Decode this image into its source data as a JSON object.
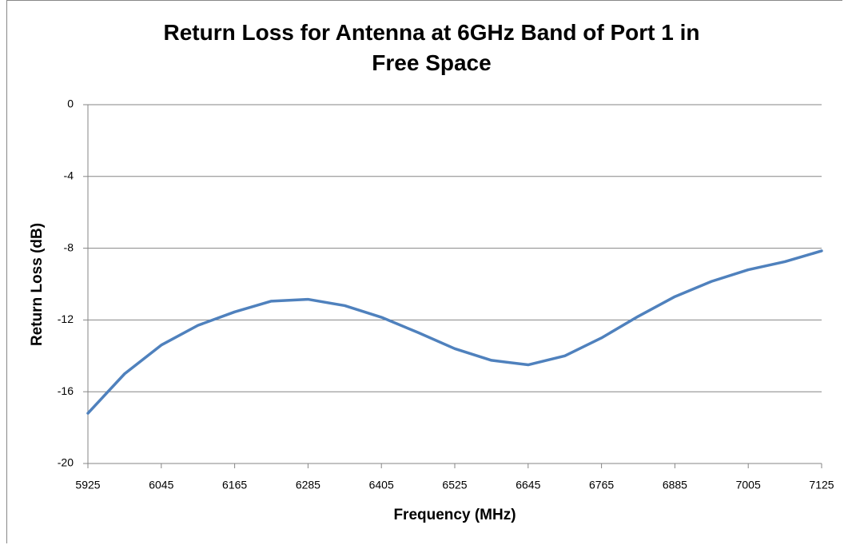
{
  "chart_data": {
    "type": "line",
    "title": "Return Loss for Antenna at 6GHz Band of Port 1 in Free Space",
    "xlabel": "Frequency  (MHz)",
    "ylabel": "Return Loss (dB)",
    "x": [
      5925,
      5985,
      6045,
      6105,
      6165,
      6225,
      6285,
      6345,
      6405,
      6465,
      6525,
      6585,
      6645,
      6705,
      6765,
      6825,
      6885,
      6945,
      7005,
      7065,
      7125
    ],
    "values": [
      -17.2,
      -15.0,
      -13.4,
      -12.3,
      -11.55,
      -10.95,
      -10.85,
      -11.2,
      -11.85,
      -12.7,
      -13.6,
      -14.25,
      -14.5,
      -14.0,
      -13.0,
      -11.8,
      -10.7,
      -9.85,
      -9.2,
      -8.75,
      -8.15
    ],
    "color": "#4f81bd",
    "xlim": [
      5925,
      7125
    ],
    "xticks": [
      5925,
      6045,
      6165,
      6285,
      6405,
      6525,
      6645,
      6765,
      6885,
      7005,
      7125
    ],
    "ylim": [
      -20,
      0
    ],
    "yticks": [
      0,
      -4,
      -8,
      -12,
      -16,
      -20
    ],
    "grid": true
  }
}
